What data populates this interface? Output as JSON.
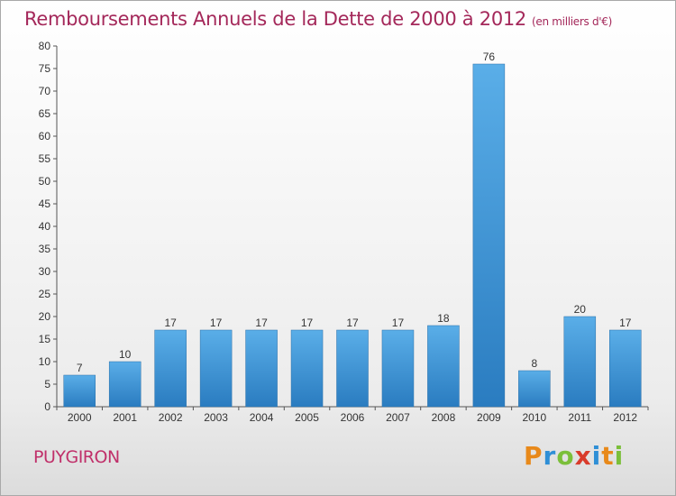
{
  "title": "Remboursements Annuels de la Dette de 2000 à 2012",
  "unit": "(en milliers d'€)",
  "commune": "PUYGIRON",
  "logo": {
    "text": "Proxiti",
    "letters": [
      "P",
      "r",
      "o",
      "x",
      "i",
      "t",
      "i"
    ],
    "colors": [
      "#e8891a",
      "#2f8fd6",
      "#7bbf3a",
      "#d93b2b",
      "#2f8fd6",
      "#e8891a",
      "#7bbf3a"
    ]
  },
  "colors": {
    "bar_light": "#5aaee8",
    "bar_dark": "#2a7cc0",
    "title": "#a4285a",
    "commune": "#c0306a"
  },
  "chart_data": {
    "type": "bar",
    "categories": [
      "2000",
      "2001",
      "2002",
      "2003",
      "2004",
      "2005",
      "2006",
      "2007",
      "2008",
      "2009",
      "2010",
      "2011",
      "2012"
    ],
    "values": [
      7,
      10,
      17,
      17,
      17,
      17,
      17,
      17,
      18,
      76,
      8,
      20,
      17
    ],
    "ylim": [
      0,
      80
    ],
    "yticks": [
      0,
      5,
      10,
      15,
      20,
      25,
      30,
      35,
      40,
      45,
      50,
      55,
      60,
      65,
      70,
      75,
      80
    ],
    "grid": false,
    "title": "Remboursements Annuels de la Dette de 2000 à 2012",
    "xlabel": "",
    "ylabel": ""
  }
}
